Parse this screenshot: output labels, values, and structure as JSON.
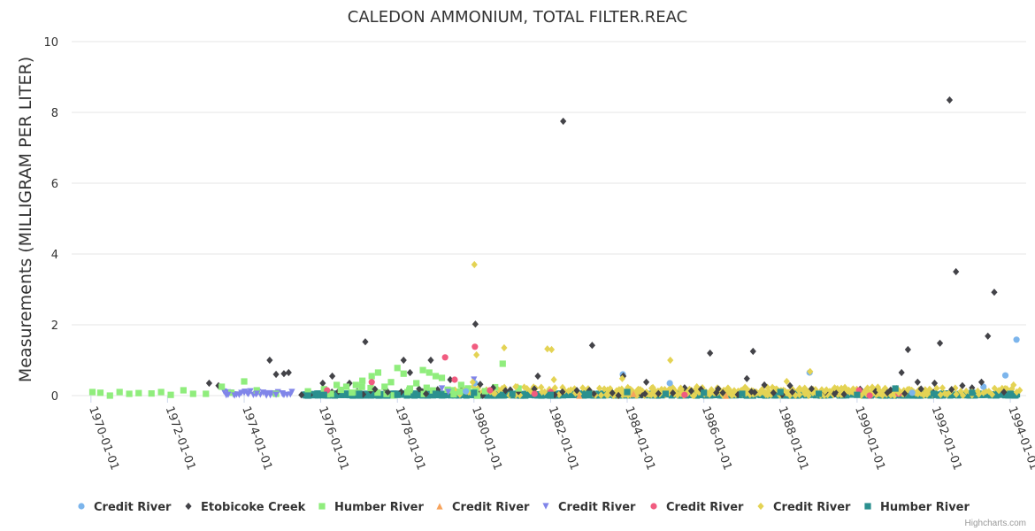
{
  "credits": "Highcharts.com",
  "chart_data": {
    "type": "scatter",
    "title": "CALEDON AMMONIUM, TOTAL FILTER.REAC",
    "ylabel": "Measurements (MILLIGRAM PER LITER)",
    "xlabel": "",
    "ylim": [
      0,
      10
    ],
    "yticks": [
      "0",
      "2",
      "4",
      "6",
      "8",
      "10"
    ],
    "xlim": [
      "1969-07-01",
      "1994-06-01"
    ],
    "xticks": [
      "1970-01-01",
      "1972-01-01",
      "1974-01-01",
      "1976-01-01",
      "1978-01-01",
      "1980-01-01",
      "1982-01-01",
      "1984-01-01",
      "1986-01-01",
      "1988-01-01",
      "1990-01-01",
      "1992-01-01",
      "1994-01-01"
    ],
    "grid": true,
    "legend_position": "bottom",
    "series": [
      {
        "name": "Credit River",
        "color": "#7cb5ec",
        "marker": "circle",
        "points": [
          [
            "1979-10-15",
            0.12
          ],
          [
            "1980-01-10",
            0.35
          ],
          [
            "1983-11-20",
            0.6
          ],
          [
            "1985-02-10",
            0.35
          ],
          [
            "1988-10-05",
            0.65
          ],
          [
            "1991-06-10",
            0.08
          ],
          [
            "1993-04-20",
            0.25
          ],
          [
            "1993-11-15",
            0.57
          ],
          [
            "1994-03-01",
            1.58
          ]
        ]
      },
      {
        "name": "Etobicoke Creek",
        "color": "#434348",
        "marker": "diamond",
        "points": [
          [
            "1973-02-01",
            0.35
          ],
          [
            "1973-05-01",
            0.28
          ],
          [
            "1974-05-01",
            0.12
          ],
          [
            "1974-09-01",
            1.0
          ],
          [
            "1974-11-01",
            0.6
          ],
          [
            "1975-01-15",
            0.62
          ],
          [
            "1975-03-01",
            0.65
          ],
          [
            "1975-07-01",
            0.02
          ],
          [
            "1976-01-20",
            0.35
          ],
          [
            "1976-04-20",
            0.55
          ],
          [
            "1976-10-01",
            0.35
          ],
          [
            "1977-03-01",
            1.52
          ],
          [
            "1977-06-01",
            0.18
          ],
          [
            "1977-10-01",
            0.1
          ],
          [
            "1978-03-01",
            1.0
          ],
          [
            "1978-05-01",
            0.65
          ],
          [
            "1978-10-01",
            0.05
          ],
          [
            "1978-11-15",
            1.0
          ],
          [
            "1979-05-20",
            0.45
          ],
          [
            "1980-01-15",
            2.02
          ],
          [
            "1980-03-01",
            0.32
          ],
          [
            "1980-07-01",
            0.22
          ],
          [
            "1981-09-01",
            0.55
          ],
          [
            "1982-05-01",
            7.75
          ],
          [
            "1983-02-01",
            1.42
          ],
          [
            "1983-11-25",
            0.55
          ],
          [
            "1984-07-01",
            0.38
          ],
          [
            "1985-07-01",
            0.22
          ],
          [
            "1986-03-01",
            1.2
          ],
          [
            "1986-07-01",
            0.08
          ],
          [
            "1987-02-15",
            0.48
          ],
          [
            "1987-04-15",
            1.25
          ],
          [
            "1987-08-01",
            0.3
          ],
          [
            "1988-04-01",
            0.28
          ],
          [
            "1989-06-01",
            0.05
          ],
          [
            "1991-03-01",
            0.65
          ],
          [
            "1991-05-01",
            1.3
          ],
          [
            "1991-08-01",
            0.38
          ],
          [
            "1992-01-10",
            0.35
          ],
          [
            "1992-03-01",
            1.48
          ],
          [
            "1992-06-01",
            8.35
          ],
          [
            "1992-08-01",
            3.5
          ],
          [
            "1992-10-01",
            0.28
          ],
          [
            "1993-01-01",
            0.22
          ],
          [
            "1993-04-01",
            0.38
          ],
          [
            "1993-06-01",
            1.68
          ],
          [
            "1993-08-01",
            2.92
          ],
          [
            "1993-11-01",
            0.1
          ]
        ]
      },
      {
        "name": "Humber River",
        "color": "#90ed7d",
        "marker": "square",
        "points": [
          [
            "1970-01-15",
            0.1
          ],
          [
            "1970-04-01",
            0.08
          ],
          [
            "1970-07-01",
            0.0
          ],
          [
            "1970-10-01",
            0.1
          ],
          [
            "1971-01-01",
            0.05
          ],
          [
            "1971-04-01",
            0.07
          ],
          [
            "1971-08-01",
            0.06
          ],
          [
            "1971-11-01",
            0.1
          ],
          [
            "1972-02-01",
            0.02
          ],
          [
            "1972-06-01",
            0.15
          ],
          [
            "1972-09-01",
            0.05
          ],
          [
            "1973-01-01",
            0.05
          ],
          [
            "1973-06-01",
            0.25
          ],
          [
            "1973-09-01",
            0.08
          ],
          [
            "1974-01-01",
            0.4
          ],
          [
            "1974-05-01",
            0.15
          ],
          [
            "1974-11-01",
            0.05
          ],
          [
            "1975-09-01",
            0.12
          ],
          [
            "1976-02-01",
            0.18
          ],
          [
            "1976-06-01",
            0.3
          ],
          [
            "1976-09-01",
            0.25
          ],
          [
            "1976-12-01",
            0.3
          ],
          [
            "1977-02-01",
            0.42
          ],
          [
            "1977-05-01",
            0.55
          ],
          [
            "1977-07-01",
            0.65
          ],
          [
            "1977-09-01",
            0.25
          ],
          [
            "1977-11-01",
            0.38
          ],
          [
            "1978-01-01",
            0.78
          ],
          [
            "1978-03-01",
            0.62
          ],
          [
            "1978-05-01",
            0.2
          ],
          [
            "1978-07-01",
            0.35
          ],
          [
            "1978-09-01",
            0.72
          ],
          [
            "1978-11-01",
            0.65
          ],
          [
            "1979-01-01",
            0.55
          ],
          [
            "1979-03-01",
            0.5
          ],
          [
            "1979-06-01",
            0.15
          ],
          [
            "1979-09-01",
            0.3
          ],
          [
            "1980-02-01",
            0.0
          ],
          [
            "1980-10-01",
            0.9
          ],
          [
            "1981-03-01",
            0.2
          ]
        ]
      },
      {
        "name": "Credit River",
        "color": "#f7a35c",
        "marker": "triangle",
        "points": [
          [
            "1982-10-01",
            0.0
          ],
          [
            "1984-03-01",
            0.05
          ],
          [
            "1986-08-01",
            0.0
          ]
        ]
      },
      {
        "name": "Credit River",
        "color": "#8085e9",
        "marker": "triangle-down",
        "points": [
          [
            "1973-08-01",
            0.02
          ],
          [
            "1973-10-01",
            0.0
          ],
          [
            "1974-01-01",
            0.08
          ],
          [
            "1974-03-01",
            0.12
          ],
          [
            "1974-05-01",
            0.05
          ],
          [
            "1974-08-01",
            0.0
          ],
          [
            "1974-11-01",
            0.02
          ],
          [
            "1975-01-01",
            0.06
          ],
          [
            "1975-04-01",
            0.1
          ],
          [
            "1979-03-01",
            0.2
          ],
          [
            "1979-05-01",
            0.1
          ],
          [
            "1980-01-01",
            0.45
          ]
        ]
      },
      {
        "name": "Credit River",
        "color": "#f15c80",
        "marker": "circle",
        "points": [
          [
            "1976-03-01",
            0.15
          ],
          [
            "1977-05-01",
            0.38
          ],
          [
            "1979-04-01",
            1.08
          ],
          [
            "1979-07-01",
            0.45
          ],
          [
            "1980-01-10",
            1.38
          ],
          [
            "1980-06-01",
            0.15
          ],
          [
            "1981-08-01",
            0.05
          ],
          [
            "1982-01-01",
            0.1
          ],
          [
            "1985-07-01",
            0.02
          ],
          [
            "1990-01-20",
            0.15
          ],
          [
            "1990-05-01",
            0.0
          ],
          [
            "1991-02-01",
            0.05
          ]
        ]
      },
      {
        "name": "Credit River",
        "color": "#e4d354",
        "marker": "diamond",
        "points": [
          [
            "1979-12-20",
            0.38
          ],
          [
            "1980-01-05",
            3.7
          ],
          [
            "1980-01-25",
            1.15
          ],
          [
            "1980-10-15",
            1.35
          ],
          [
            "1981-02-01",
            0.25
          ],
          [
            "1981-12-01",
            1.32
          ],
          [
            "1982-01-10",
            1.3
          ],
          [
            "1982-02-01",
            0.45
          ],
          [
            "1983-11-15",
            0.48
          ],
          [
            "1984-02-01",
            0.18
          ],
          [
            "1984-05-01",
            0.12
          ],
          [
            "1985-02-15",
            1.0
          ],
          [
            "1985-06-01",
            0.18
          ],
          [
            "1986-03-01",
            0.1
          ],
          [
            "1988-03-01",
            0.4
          ],
          [
            "1988-10-10",
            0.68
          ],
          [
            "1989-03-01",
            0.12
          ],
          [
            "1989-06-01",
            0.22
          ],
          [
            "1990-08-01",
            0.15
          ],
          [
            "1991-02-01",
            0.08
          ],
          [
            "1993-01-01",
            0.1
          ],
          [
            "1994-02-01",
            0.3
          ],
          [
            "1994-04-01",
            0.15
          ]
        ]
      },
      {
        "name": "Humber River",
        "color": "#2b908f",
        "marker": "square",
        "points": [
          [
            "1975-09-01",
            0.0
          ],
          [
            "1976-02-01",
            0.02
          ],
          [
            "1977-01-01",
            0.05
          ],
          [
            "1978-01-01",
            0.02
          ],
          [
            "1979-01-01",
            0.05
          ],
          [
            "1980-01-01",
            0.08
          ],
          [
            "1981-01-01",
            0.05
          ],
          [
            "1982-01-01",
            0.02
          ],
          [
            "1983-01-01",
            0.05
          ],
          [
            "1984-01-01",
            0.1
          ],
          [
            "1985-01-01",
            0.05
          ],
          [
            "1986-01-01",
            0.08
          ],
          [
            "1987-01-01",
            0.05
          ],
          [
            "1988-01-01",
            0.1
          ],
          [
            "1989-01-01",
            0.05
          ],
          [
            "1990-01-01",
            0.02
          ],
          [
            "1991-01-01",
            0.2
          ],
          [
            "1992-01-01",
            0.05
          ],
          [
            "1993-01-01",
            0.08
          ],
          [
            "1994-01-01",
            0.05
          ]
        ]
      }
    ]
  }
}
